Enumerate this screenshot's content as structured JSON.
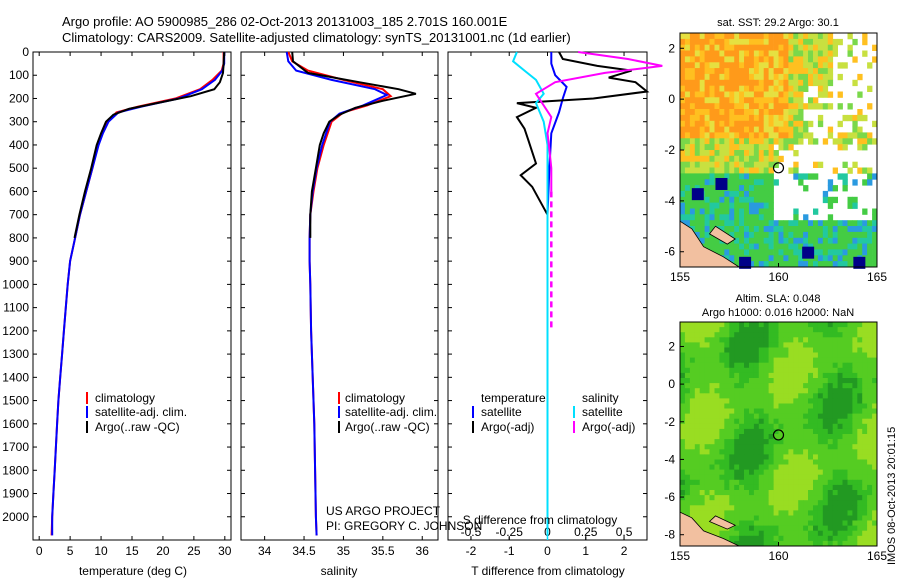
{
  "header": {
    "title_line1": "Argo profile: AO 5900985_286 02-Oct-2013 20131003_185 2.701S 160.001E",
    "title_line2": "Climatology: CARS2009. Satellite-adjusted climatology: synTS_20131001.nc (1d earlier)"
  },
  "colors": {
    "climatology": "#ff0000",
    "satellite": "#0000ff",
    "argo": "#000000",
    "sat_salinity": "#00e0ff",
    "argo_salinity_diff": "#ff00ff"
  },
  "chart_data": [
    {
      "type": "line",
      "name": "temperature-profile",
      "xlabel": "temperature (deg C)",
      "ylabel": "",
      "xlim": [
        -1,
        31
      ],
      "ylim": [
        2100,
        0
      ],
      "xticks": [
        0,
        5,
        10,
        15,
        20,
        25,
        30
      ],
      "yticks": [
        0,
        100,
        200,
        300,
        400,
        500,
        600,
        700,
        800,
        900,
        1000,
        1100,
        1200,
        1300,
        1400,
        1500,
        1600,
        1700,
        1800,
        1900,
        2000
      ],
      "legend": [
        "climatology",
        "satellite-adj. clim.",
        "Argo(..raw -QC)"
      ],
      "series": [
        {
          "name": "climatology",
          "color": "#ff0000",
          "points": [
            [
              29.8,
              0
            ],
            [
              29.8,
              50
            ],
            [
              29.5,
              80
            ],
            [
              28,
              120
            ],
            [
              26,
              160
            ],
            [
              22,
              200
            ],
            [
              16,
              235
            ],
            [
              12.5,
              260
            ],
            [
              11,
              300
            ],
            [
              10.2,
              350
            ],
            [
              9.5,
              400
            ],
            [
              8.6,
              500
            ],
            [
              7.6,
              600
            ],
            [
              6.6,
              700
            ],
            [
              5.8,
              800
            ],
            [
              5.0,
              900
            ],
            [
              4.6,
              1000
            ],
            [
              4.3,
              1100
            ],
            [
              4.0,
              1200
            ],
            [
              3.7,
              1300
            ],
            [
              3.4,
              1400
            ],
            [
              3.1,
              1500
            ],
            [
              2.9,
              1600
            ],
            [
              2.7,
              1700
            ],
            [
              2.5,
              1800
            ],
            [
              2.3,
              1900
            ],
            [
              2.1,
              2000
            ],
            [
              2.0,
              2080
            ]
          ]
        },
        {
          "name": "satellite-adj. clim.",
          "color": "#0000ff",
          "points": [
            [
              29.9,
              0
            ],
            [
              29.9,
              50
            ],
            [
              29.6,
              80
            ],
            [
              28.4,
              120
            ],
            [
              26.3,
              160
            ],
            [
              22.5,
              200
            ],
            [
              16.5,
              235
            ],
            [
              12.8,
              260
            ],
            [
              11.2,
              300
            ],
            [
              10.3,
              350
            ],
            [
              9.6,
              400
            ],
            [
              8.6,
              500
            ],
            [
              7.6,
              600
            ],
            [
              6.6,
              700
            ],
            [
              5.8,
              800
            ],
            [
              5.0,
              900
            ],
            [
              4.6,
              1000
            ],
            [
              4.3,
              1100
            ],
            [
              4.0,
              1200
            ],
            [
              3.7,
              1300
            ],
            [
              3.4,
              1400
            ],
            [
              3.1,
              1500
            ],
            [
              2.9,
              1600
            ],
            [
              2.7,
              1700
            ],
            [
              2.5,
              1800
            ],
            [
              2.3,
              1900
            ],
            [
              2.1,
              2000
            ],
            [
              2.1,
              2080
            ]
          ]
        },
        {
          "name": "Argo(..raw -QC)",
          "color": "#000000",
          "points": [
            [
              29.9,
              0
            ],
            [
              29.8,
              50
            ],
            [
              29.7,
              90
            ],
            [
              29.2,
              130
            ],
            [
              28.3,
              160
            ],
            [
              24.5,
              190
            ],
            [
              19,
              220
            ],
            [
              14.5,
              245
            ],
            [
              12,
              270
            ],
            [
              10.8,
              300
            ],
            [
              10,
              350
            ],
            [
              9.3,
              400
            ],
            [
              8.4,
              500
            ],
            [
              7.4,
              600
            ],
            [
              6.5,
              700
            ],
            [
              5.7,
              800
            ]
          ]
        }
      ]
    },
    {
      "type": "line",
      "name": "salinity-profile",
      "xlabel": "salinity",
      "ylabel": "",
      "xlim": [
        33.7,
        36.2
      ],
      "ylim": [
        2100,
        0
      ],
      "xticks": [
        34,
        34.5,
        35,
        35.5,
        36
      ],
      "legend": [
        "climatology",
        "satellite-adj. clim.",
        "Argo(..raw -QC)"
      ],
      "annotation": [
        "US ARGO PROJECT",
        "PI: GREGORY C. JOHNSON"
      ],
      "series": [
        {
          "name": "climatology",
          "color": "#ff0000",
          "points": [
            [
              34.3,
              0
            ],
            [
              34.35,
              40
            ],
            [
              34.55,
              80
            ],
            [
              35.0,
              120
            ],
            [
              35.5,
              160
            ],
            [
              35.6,
              190
            ],
            [
              35.3,
              230
            ],
            [
              35.0,
              260
            ],
            [
              34.85,
              300
            ],
            [
              34.75,
              400
            ],
            [
              34.67,
              500
            ],
            [
              34.62,
              600
            ],
            [
              34.58,
              700
            ],
            [
              34.57,
              800
            ],
            [
              34.57,
              900
            ],
            [
              34.58,
              1000
            ],
            [
              34.59,
              1200
            ],
            [
              34.61,
              1400
            ],
            [
              34.63,
              1600
            ],
            [
              34.64,
              1800
            ],
            [
              34.65,
              2000
            ],
            [
              34.66,
              2080
            ]
          ]
        },
        {
          "name": "satellite-adj. clim.",
          "color": "#0000ff",
          "points": [
            [
              34.28,
              0
            ],
            [
              34.3,
              40
            ],
            [
              34.4,
              80
            ],
            [
              34.85,
              120
            ],
            [
              35.4,
              160
            ],
            [
              35.55,
              185
            ],
            [
              35.25,
              230
            ],
            [
              34.95,
              265
            ],
            [
              34.83,
              300
            ],
            [
              34.73,
              400
            ],
            [
              34.66,
              500
            ],
            [
              34.61,
              600
            ],
            [
              34.58,
              700
            ],
            [
              34.57,
              800
            ],
            [
              34.57,
              900
            ],
            [
              34.58,
              1000
            ],
            [
              34.59,
              1200
            ],
            [
              34.61,
              1400
            ],
            [
              34.63,
              1600
            ],
            [
              34.64,
              1800
            ],
            [
              34.65,
              2000
            ],
            [
              34.66,
              2080
            ]
          ]
        },
        {
          "name": "Argo(..raw -QC)",
          "color": "#000000",
          "points": [
            [
              34.35,
              0
            ],
            [
              34.36,
              40
            ],
            [
              34.55,
              90
            ],
            [
              35.2,
              130
            ],
            [
              35.7,
              160
            ],
            [
              35.92,
              180
            ],
            [
              35.5,
              210
            ],
            [
              35.15,
              240
            ],
            [
              34.95,
              270
            ],
            [
              34.82,
              300
            ],
            [
              34.75,
              350
            ],
            [
              34.7,
              400
            ],
            [
              34.65,
              500
            ],
            [
              34.6,
              600
            ],
            [
              34.58,
              700
            ],
            [
              34.58,
              800
            ]
          ]
        }
      ]
    },
    {
      "type": "line",
      "name": "difference-profile",
      "xlabel": "T difference from climatology",
      "xlabel_top": "S difference from climatology",
      "xlim": [
        -2.6,
        2.6
      ],
      "ylim": [
        2100,
        0
      ],
      "xticks": [
        -2,
        -1,
        0,
        1,
        2
      ],
      "xticks_s": [
        -0.5,
        -0.25,
        0,
        0.25,
        0.5
      ],
      "legend_left_title": "temperature",
      "legend_right_title": "salinity",
      "legend_left": [
        "satellite",
        "Argo(-adj)"
      ],
      "legend_right": [
        "satellite",
        "Argo(-adj)"
      ],
      "series": [
        {
          "name": "T satellite",
          "color": "#0000ff",
          "points": [
            [
              0.1,
              0
            ],
            [
              0.1,
              50
            ],
            [
              0.2,
              100
            ],
            [
              0.5,
              150
            ],
            [
              0.4,
              200
            ],
            [
              0.3,
              260
            ],
            [
              0.1,
              350
            ],
            [
              0.05,
              500
            ],
            [
              0,
              700
            ],
            [
              0,
              1000
            ],
            [
              0,
              1500
            ],
            [
              0,
              2000
            ],
            [
              0,
              2080
            ]
          ]
        },
        {
          "name": "T Argo(-adj)",
          "color": "#000000",
          "points": [
            [
              0.3,
              0
            ],
            [
              0.4,
              30
            ],
            [
              1.3,
              60
            ],
            [
              2.2,
              80
            ],
            [
              1.6,
              110
            ],
            [
              2.3,
              130
            ],
            [
              2.6,
              170
            ],
            [
              1.2,
              200
            ],
            [
              -0.8,
              220
            ],
            [
              -0.3,
              240
            ],
            [
              -0.8,
              280
            ],
            [
              -0.6,
              330
            ],
            [
              -0.5,
              380
            ],
            [
              -0.4,
              430
            ],
            [
              -0.3,
              480
            ],
            [
              -0.7,
              530
            ],
            [
              -0.4,
              580
            ],
            [
              -0.2,
              640
            ],
            [
              0,
              700
            ],
            [
              0,
              800
            ]
          ]
        },
        {
          "name": "S satellite",
          "color": "#00e0ff",
          "points": [
            [
              -0.8,
              0
            ],
            [
              -0.9,
              40
            ],
            [
              -0.6,
              80
            ],
            [
              -0.3,
              120
            ],
            [
              -0.1,
              180
            ],
            [
              -0.3,
              220
            ],
            [
              -0.1,
              300
            ],
            [
              0,
              400
            ],
            [
              0,
              600
            ],
            [
              0,
              1000
            ],
            [
              0,
              1500
            ],
            [
              0,
              2000
            ],
            [
              0,
              2080
            ]
          ]
        },
        {
          "name": "S Argo(-adj)",
          "color": "#ff00ff",
          "dash_from": 650,
          "points": [
            [
              0.8,
              0
            ],
            [
              2.1,
              30
            ],
            [
              3.0,
              60
            ],
            [
              1.5,
              90
            ],
            [
              0.2,
              130
            ],
            [
              -0.3,
              180
            ],
            [
              -0.1,
              230
            ],
            [
              0.1,
              280
            ],
            [
              0,
              350
            ],
            [
              0.05,
              420
            ],
            [
              0.1,
              500
            ],
            [
              0.1,
              600
            ],
            [
              0.1,
              700
            ],
            [
              0.1,
              800
            ],
            [
              0.1,
              900
            ],
            [
              0.1,
              1000
            ],
            [
              0.1,
              1100
            ],
            [
              0.1,
              1200
            ]
          ]
        }
      ]
    },
    {
      "type": "heatmap",
      "name": "sst-map",
      "title": "sat. SST: 29.2  Argo: 30.1",
      "xlim": [
        155,
        165
      ],
      "ylim": [
        -6.6,
        2.6
      ],
      "xticks": [
        155,
        160,
        165
      ],
      "yticks": [
        2,
        0,
        -2,
        -4,
        -6
      ],
      "marker": [
        160.0,
        -2.7
      ]
    },
    {
      "type": "heatmap",
      "name": "sla-map",
      "title_line1": "Altim. SLA: 0.048",
      "title_line2": "Argo h1000: 0.016  h2000: NaN",
      "xlim": [
        155,
        165
      ],
      "ylim": [
        -8.6,
        3.3
      ],
      "xticks": [
        155,
        160,
        165
      ],
      "yticks": [
        2,
        0,
        -2,
        -4,
        -6,
        -8
      ],
      "marker": [
        160.0,
        -2.7
      ]
    }
  ],
  "side_label": "IMOS 08-Oct-2013 20:01:15"
}
